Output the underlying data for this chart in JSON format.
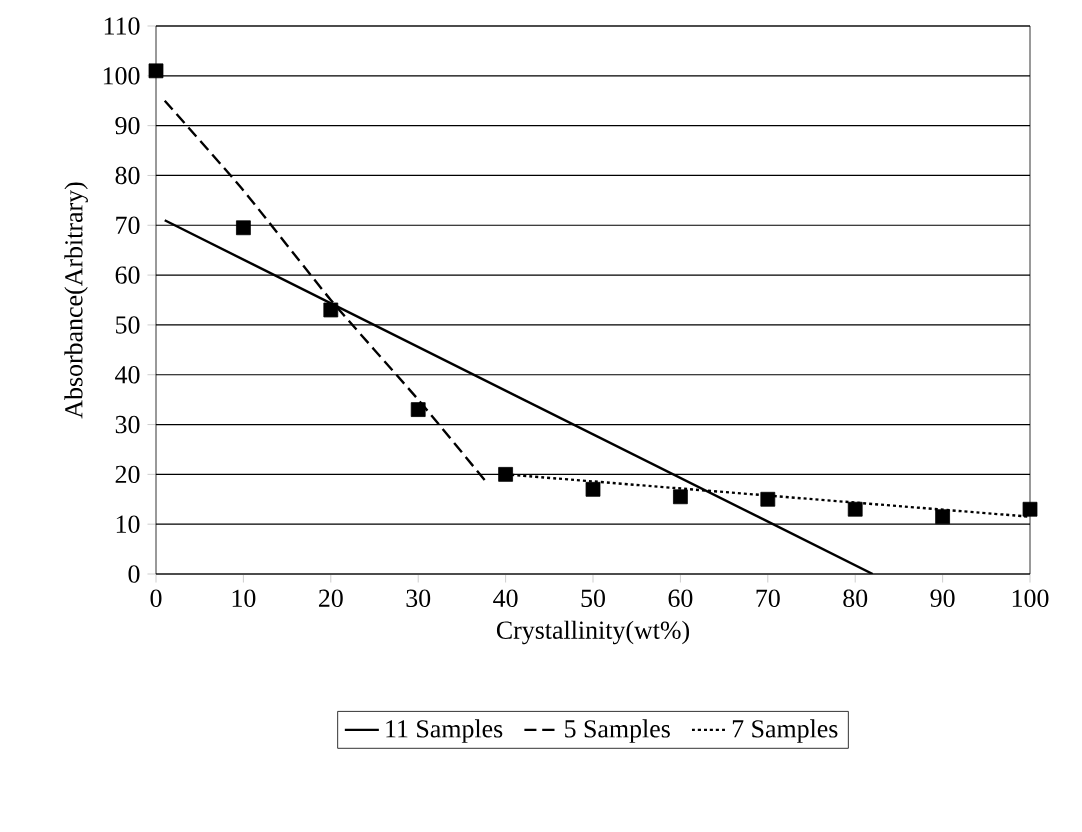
{
  "chart_data": {
    "type": "line",
    "xlabel": "Crystallinity(wt%)",
    "ylabel": "Absorbance(Arbitrary)",
    "xlim": [
      0,
      100
    ],
    "ylim": [
      0,
      110
    ],
    "xticks": [
      0,
      10,
      20,
      30,
      40,
      50,
      60,
      70,
      80,
      90,
      100
    ],
    "yticks": [
      0,
      10,
      20,
      30,
      40,
      50,
      60,
      70,
      80,
      90,
      100,
      110
    ],
    "grid": "y",
    "legend": "bottom",
    "series": [
      {
        "type": "scatter",
        "marker": "square",
        "color": "#000000",
        "x": [
          0,
          10,
          20,
          30,
          40,
          50,
          60,
          70,
          80,
          90,
          100
        ],
        "values": [
          101,
          69.5,
          53,
          33,
          20,
          17,
          15.5,
          15,
          13,
          11.5,
          13
        ]
      },
      {
        "name": "11 Samples",
        "line_style": "solid",
        "marker": "none",
        "color": "#000000",
        "x": [
          1,
          82
        ],
        "values": [
          71,
          0
        ]
      },
      {
        "name": "5 Samples",
        "line_style": "dashed",
        "marker": "none",
        "color": "#000000",
        "x": [
          1,
          10,
          20,
          30,
          38
        ],
        "values": [
          95,
          77,
          55,
          35,
          18
        ]
      },
      {
        "name": "7 Samples",
        "line_style": "dotted",
        "marker": "none",
        "color": "#000000",
        "x": [
          40,
          100
        ],
        "values": [
          20,
          11.5
        ]
      }
    ]
  }
}
